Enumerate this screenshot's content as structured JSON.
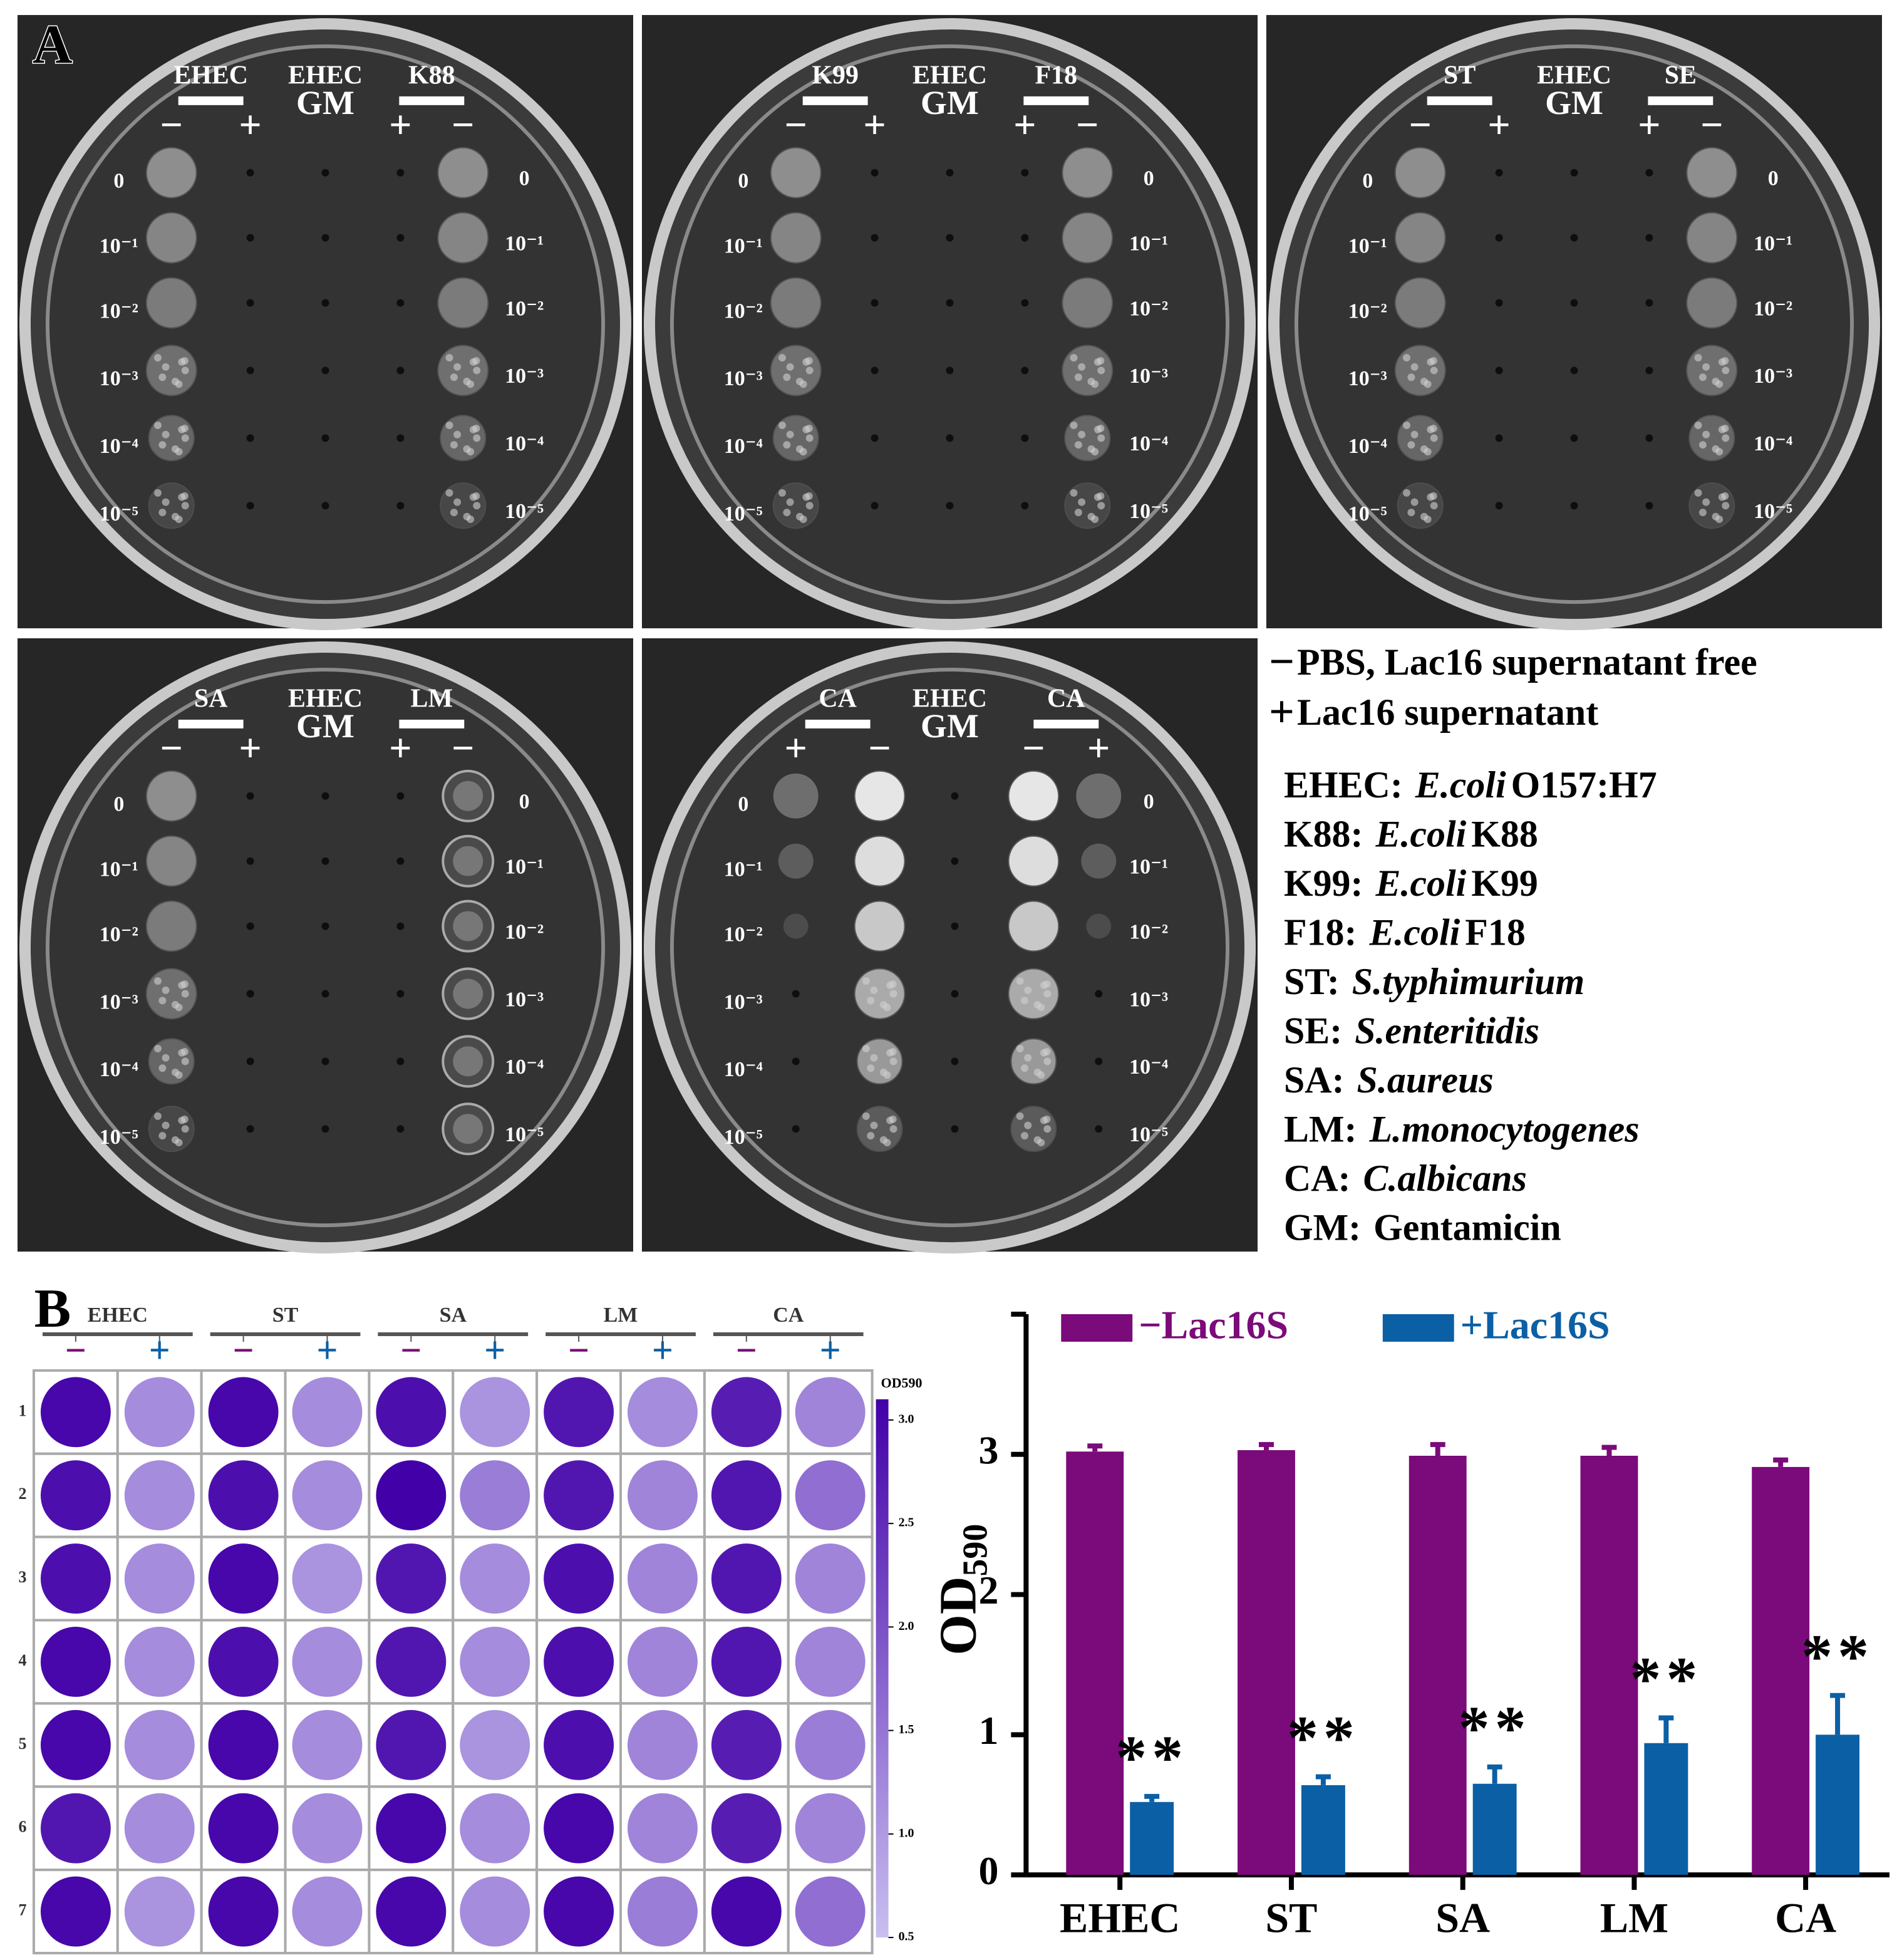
{
  "panel_labels": [
    "A",
    "B"
  ],
  "panel_a": {
    "control_label": "EHEC",
    "control_agent": "GM",
    "dilutions": [
      "0",
      "10⁻¹",
      "10⁻²",
      "10⁻³",
      "10⁻⁴",
      "10⁻⁵"
    ],
    "plates": [
      {
        "left": "EHEC",
        "right": "K88",
        "left_signs": [
          "−",
          "+"
        ],
        "right_signs": [
          "+",
          "−"
        ]
      },
      {
        "left": "K99",
        "right": "F18",
        "left_signs": [
          "−",
          "+"
        ],
        "right_signs": [
          "+",
          "−"
        ]
      },
      {
        "left": "ST",
        "right": "SE",
        "left_signs": [
          "−",
          "+"
        ],
        "right_signs": [
          "+",
          "−"
        ]
      },
      {
        "left": "SA",
        "right": "LM",
        "left_signs": [
          "−",
          "+"
        ],
        "right_signs": [
          "+",
          "−"
        ]
      },
      {
        "left": "CA",
        "right": "CA",
        "left_signs": [
          "+",
          "−"
        ],
        "right_signs": [
          "−",
          "+"
        ]
      }
    ],
    "key": [
      {
        "sign": "−",
        "text": "PBS, Lac16 supernatant free"
      },
      {
        "sign": "+",
        "text": "Lac16 supernatant"
      }
    ],
    "abbreviations": [
      {
        "abbr": "EHEC:",
        "species": "E.coli",
        "strain": "O157:H7"
      },
      {
        "abbr": "K88:",
        "species": "E.coli",
        "strain": "K88"
      },
      {
        "abbr": "K99:",
        "species": "E.coli",
        "strain": "K99"
      },
      {
        "abbr": "F18:",
        "species": "E.coli",
        "strain": "F18"
      },
      {
        "abbr": "ST:",
        "species": "S.typhimurium"
      },
      {
        "abbr": "SE:",
        "species": "S.enteritidis"
      },
      {
        "abbr": "SA:",
        "species": "S.aureus"
      },
      {
        "abbr": "LM:",
        "species": "L.monocytogenes"
      },
      {
        "abbr": "CA:",
        "species": "C.albicans"
      },
      {
        "abbr": "GM:",
        "name": "Gentamicin"
      }
    ]
  },
  "chart_data": [
    {
      "type": "bar",
      "y_label": "OD",
      "y_label_sub": "590",
      "categories": [
        "EHEC",
        "ST",
        "SA",
        "LM",
        "CA"
      ],
      "ylim": [
        0,
        4
      ],
      "yticks": [
        0,
        1,
        2,
        3
      ],
      "legend": "top-left",
      "series": [
        {
          "name": "−Lac16S",
          "color": "#7b0a7b",
          "values": [
            3.02,
            3.03,
            2.99,
            2.99,
            2.91
          ],
          "errors": [
            0.04,
            0.04,
            0.08,
            0.06,
            0.05
          ]
        },
        {
          "name": "+Lac16S",
          "color": "#0b5fa5",
          "values": [
            0.52,
            0.64,
            0.65,
            0.94,
            1.0
          ],
          "errors": [
            0.04,
            0.06,
            0.12,
            0.18,
            0.28
          ],
          "significance": [
            "**",
            "**",
            "**",
            "**",
            "**"
          ]
        }
      ]
    },
    {
      "type": "heatmap",
      "groups": [
        "EHEC",
        "ST",
        "SA",
        "LM",
        "CA"
      ],
      "signs": [
        "−",
        "+"
      ],
      "sign_colors": [
        "#7b0a7b",
        "#0b5fa5"
      ],
      "rows": [
        "1",
        "2",
        "3",
        "4",
        "5",
        "6",
        "7"
      ],
      "colorbar_title": "OD590",
      "colors": [
        "#c9bff0",
        "#4200a8"
      ],
      "clim": [
        0.5,
        3.1
      ],
      "cticks": [
        0.5,
        {
          "value": 1,
          "label": "1.0"
        },
        1.5,
        {
          "value": 2,
          "label": "2.0"
        },
        2.5,
        {
          "value": 3,
          "label": "3.0"
        }
      ],
      "values": [
        [
          3.0,
          1.2,
          3.0,
          1.2,
          2.9,
          1.1,
          2.8,
          1.2,
          2.7,
          1.3
        ],
        [
          2.9,
          1.2,
          2.9,
          1.2,
          3.1,
          1.4,
          2.8,
          1.3,
          2.8,
          1.6
        ],
        [
          2.9,
          1.2,
          3.0,
          1.1,
          2.8,
          1.2,
          2.9,
          1.3,
          2.8,
          1.3
        ],
        [
          3.0,
          1.2,
          2.9,
          1.2,
          2.8,
          1.2,
          2.9,
          1.3,
          2.8,
          1.3
        ],
        [
          3.0,
          1.2,
          3.0,
          1.2,
          2.8,
          1.1,
          2.9,
          1.3,
          2.7,
          1.4
        ],
        [
          2.8,
          1.2,
          3.0,
          1.2,
          3.0,
          1.2,
          3.0,
          1.3,
          2.7,
          1.3
        ],
        [
          3.0,
          1.1,
          3.0,
          1.2,
          3.0,
          1.2,
          3.0,
          1.4,
          3.0,
          1.6
        ]
      ]
    }
  ]
}
